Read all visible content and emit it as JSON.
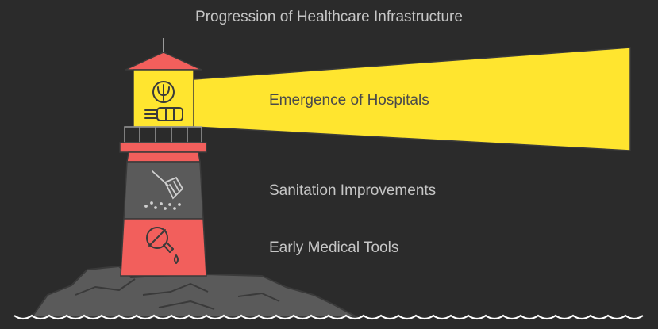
{
  "title": "Progression of Healthcare Infrastructure",
  "stages": [
    {
      "label": "Emergence of Hospitals",
      "icon": "psi-medical-icon"
    },
    {
      "label": "Sanitation Improvements",
      "icon": "broom-sweeping-icon"
    },
    {
      "label": "Early Medical Tools",
      "icon": "flask-drop-icon"
    }
  ],
  "colors": {
    "background": "#2b2b2b",
    "beam": "#ffe52f",
    "tower_red": "#f25f5c",
    "tower_gray": "#5a5a5a",
    "rocks": "#5a5a5a",
    "text_light": "#c6c6c6",
    "text_dark": "#4a4a4a"
  }
}
